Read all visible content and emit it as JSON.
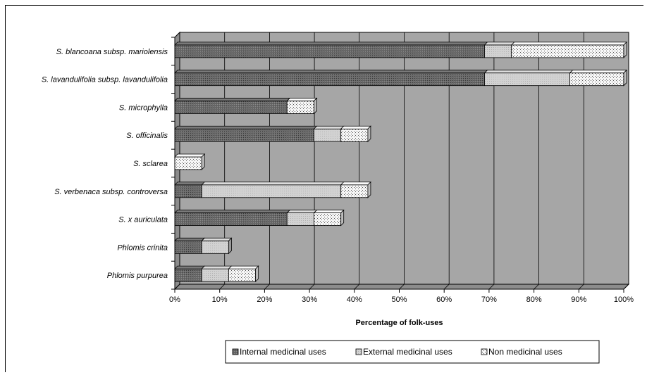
{
  "chart_data": {
    "type": "bar",
    "orientation": "horizontal",
    "stacked": true,
    "percent": true,
    "categories": [
      "S. blancoana subsp. mariolensis",
      "S. lavandulifolia subsp. lavandulifolia",
      "S. microphylla",
      "S. officinalis",
      "S. sclarea",
      "S. verbenaca subsp. controversa",
      "S. x auriculata",
      "Phlomis crinita",
      "Phlomis purpurea"
    ],
    "series": [
      {
        "name": "Internal medicinal uses",
        "values": [
          69,
          69,
          25,
          31,
          0,
          6,
          25,
          6,
          6
        ],
        "color": "#595959"
      },
      {
        "name": "External medicinal uses",
        "values": [
          6,
          19,
          0,
          6,
          0,
          31,
          6,
          6,
          6
        ],
        "color": "#c8c8c8"
      },
      {
        "name": "Non medicinal uses",
        "values": [
          25,
          12,
          6,
          6,
          6,
          6,
          6,
          0,
          6
        ],
        "color": "#f3f3f3"
      }
    ],
    "x_ticks": [
      "0%",
      "10%",
      "20%",
      "30%",
      "40%",
      "50%",
      "60%",
      "70%",
      "80%",
      "90%",
      "100%"
    ],
    "xlabel": "Percentage of folk-uses",
    "xlim": [
      0,
      100
    ],
    "grid": true,
    "legend_position": "bottom",
    "plot_background": "#a6a6a6"
  }
}
